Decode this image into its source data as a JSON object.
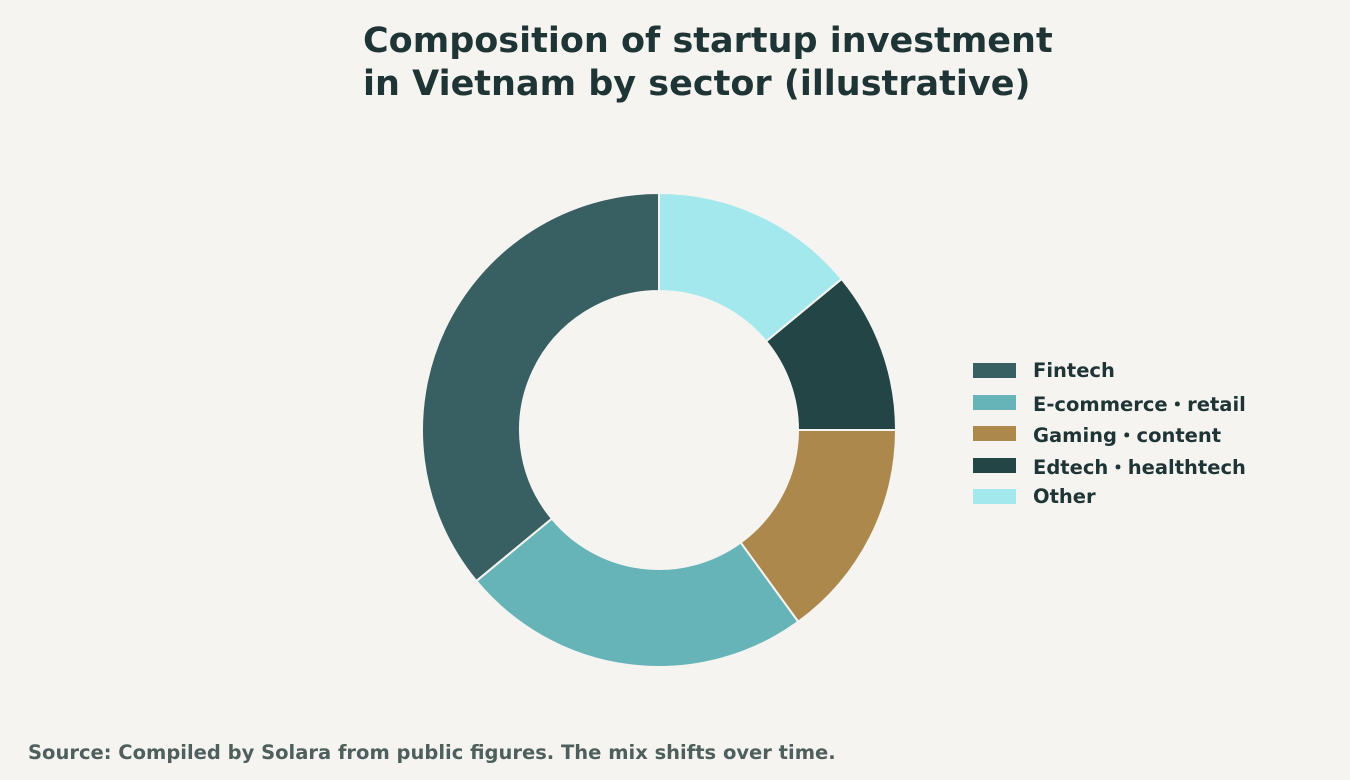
{
  "chart_data": {
    "type": "pie",
    "title_lines": [
      "Composition of startup investment",
      "in Vietnam by sector (illustrative)"
    ],
    "categories": [
      "Fintech",
      "E-commerce・retail",
      "Gaming・content",
      "Edtech・healthtech",
      "Other"
    ],
    "values": [
      36,
      24,
      15,
      11,
      14
    ],
    "legend_position": "right",
    "start_angle": "top",
    "direction": "counterclockwise",
    "hole": true,
    "colors": [
      "#385f61",
      "#66b4b8",
      "#ad884d",
      "#244546",
      "#a2e8ed"
    ],
    "background": "#f5f4f0",
    "source": "Source: Compiled by Solara from public figures. The mix shifts over time."
  }
}
